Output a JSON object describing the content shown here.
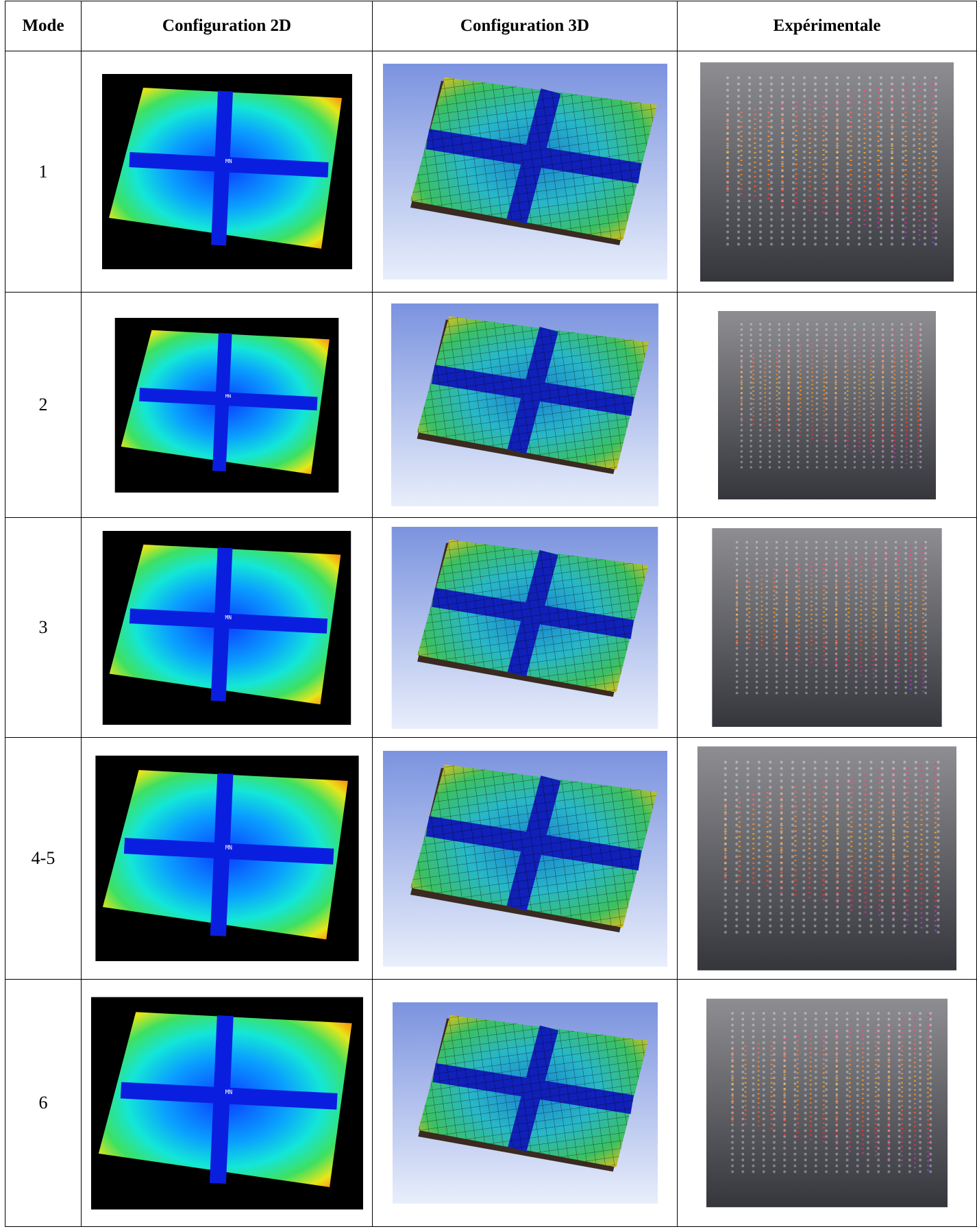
{
  "table": {
    "header": [
      "Mode",
      "Configuration 2D",
      "Configuration 3D",
      "Expérimentale"
    ],
    "rows": [
      {
        "mode": "1"
      },
      {
        "mode": "2"
      },
      {
        "mode": "3"
      },
      {
        "mode": "4-5"
      },
      {
        "mode": "6"
      }
    ]
  }
}
